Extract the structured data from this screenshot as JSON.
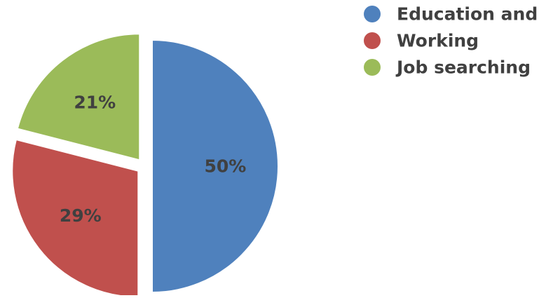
{
  "chart_data": {
    "type": "pie",
    "categories": [
      "Education and",
      "Working",
      "Job searching"
    ],
    "values": [
      50,
      29,
      21
    ],
    "value_labels": [
      "50%",
      "29%",
      "21%"
    ],
    "colors": [
      "#4f81bd",
      "#c0504d",
      "#9bbb59"
    ],
    "exploded": true,
    "legend_placement": "top-right",
    "label_color": "#404040"
  }
}
